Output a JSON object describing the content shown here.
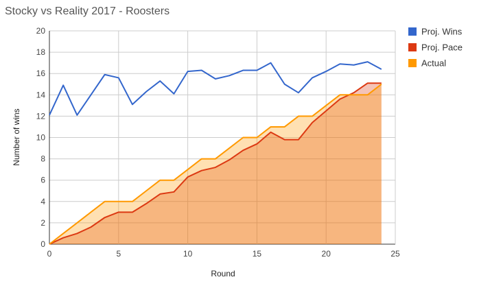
{
  "chart_data": {
    "type": "area",
    "title": "Stocky vs Reality 2017 - Roosters",
    "xlabel": "Round",
    "ylabel": "Number of wins",
    "xlim": [
      0,
      25
    ],
    "ylim": [
      0,
      20
    ],
    "xticks": [
      0,
      5,
      10,
      15,
      20,
      25
    ],
    "yticks": [
      0,
      2,
      4,
      6,
      8,
      10,
      12,
      14,
      16,
      18,
      20
    ],
    "grid": true,
    "legend": "right",
    "x": [
      0,
      1,
      2,
      3,
      4,
      5,
      6,
      7,
      8,
      9,
      10,
      11,
      12,
      13,
      14,
      15,
      16,
      17,
      18,
      19,
      20,
      21,
      22,
      23,
      24
    ],
    "series": [
      {
        "name": "Proj. Wins",
        "render": "line",
        "color": "#3366cc",
        "values": [
          12.1,
          14.9,
          12.1,
          14.0,
          15.9,
          15.6,
          13.1,
          14.3,
          15.3,
          14.1,
          16.2,
          16.3,
          15.5,
          15.8,
          16.3,
          16.3,
          17.0,
          15.0,
          14.2,
          15.6,
          16.2,
          16.9,
          16.8,
          17.1,
          16.4
        ]
      },
      {
        "name": "Proj. Pace",
        "render": "area",
        "color": "#dc3912",
        "values": [
          0,
          0.6,
          1.0,
          1.6,
          2.5,
          3.0,
          3.0,
          3.8,
          4.7,
          4.9,
          6.3,
          6.9,
          7.2,
          7.9,
          8.8,
          9.4,
          10.5,
          9.8,
          9.8,
          11.4,
          12.5,
          13.6,
          14.2,
          15.1,
          15.1
        ]
      },
      {
        "name": "Actual",
        "render": "area",
        "color": "#ff9900",
        "values": [
          0,
          1,
          2,
          3,
          4,
          4,
          4,
          5,
          6,
          6,
          7,
          8,
          8,
          9,
          10,
          10,
          11,
          11,
          12,
          12,
          13,
          14,
          14,
          14,
          15
        ]
      }
    ]
  }
}
